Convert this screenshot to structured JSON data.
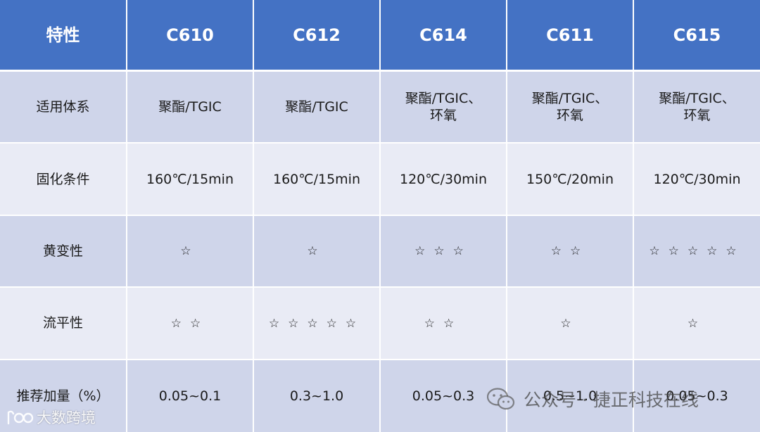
{
  "table": {
    "headers": [
      "特性",
      "C610",
      "C612",
      "C614",
      "C611",
      "C615"
    ],
    "rows": [
      {
        "label": "适用体系",
        "cells": [
          [
            "聚酯/TGIC"
          ],
          [
            "聚酯/TGIC"
          ],
          [
            "聚酯/TGIC、",
            "环氧"
          ],
          [
            "聚酯/TGIC、",
            "环氧"
          ],
          [
            "聚酯/TGIC、",
            "环氧"
          ]
        ]
      },
      {
        "label": "固化条件",
        "cells": [
          [
            "160℃/15min"
          ],
          [
            "160℃/15min"
          ],
          [
            "120℃/30min"
          ],
          [
            "150℃/20min"
          ],
          [
            "120℃/30min"
          ]
        ]
      },
      {
        "label": "黄变性",
        "cells": [
          [
            "☆"
          ],
          [
            "☆"
          ],
          [
            "☆☆☆"
          ],
          [
            "☆☆"
          ],
          [
            "☆☆☆☆☆"
          ]
        ]
      },
      {
        "label": "流平性",
        "cells": [
          [
            "☆☆"
          ],
          [
            "☆☆☆☆☆"
          ],
          [
            "☆☆"
          ],
          [
            "☆"
          ],
          [
            "☆"
          ]
        ]
      },
      {
        "label": "推荐加量（%）",
        "cells": [
          [
            "0.05~0.1"
          ],
          [
            "0.3~1.0"
          ],
          [
            "0.05~0.3"
          ],
          [
            "0.5~1.0"
          ],
          [
            "0.05~0.3"
          ]
        ]
      }
    ]
  },
  "watermarks": {
    "wechat": "公众号 · 捷正科技在线",
    "bottom": "大数跨境"
  },
  "colors": {
    "header_bg": "#4472c4",
    "row_dark": "#cfd5ea",
    "row_light": "#e9ebf5"
  }
}
